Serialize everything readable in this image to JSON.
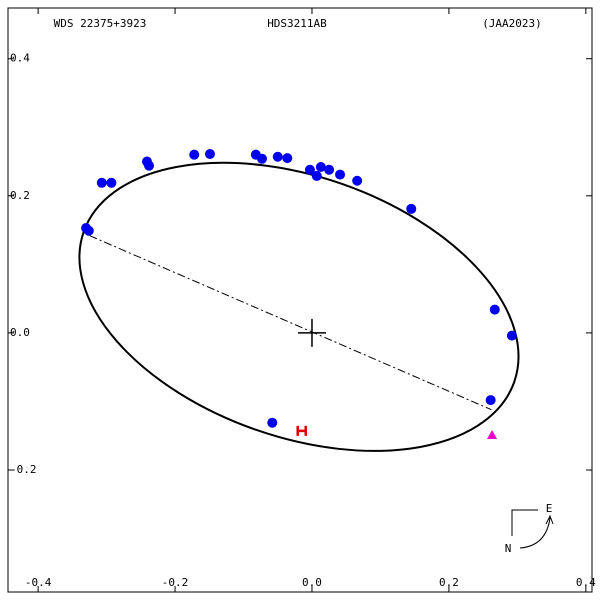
{
  "chart_data": {
    "type": "scatter",
    "header": {
      "left": "WDS 22375+3923",
      "center": "HDS3211AB",
      "right": "(JAA2023)"
    },
    "xlim": [
      -0.444,
      0.409
    ],
    "ylim": [
      -0.378,
      0.474
    ],
    "xticks": [
      -0.4,
      -0.2,
      {
        "value": 0,
        "label": "0.0"
      },
      0.2,
      0.4
    ],
    "yticks": [
      -0.2,
      {
        "value": 0,
        "label": "0.0"
      },
      0.2,
      0.4
    ],
    "series": [
      {
        "color": "#0000ee",
        "marker": "circle",
        "x": [
          -0.33,
          -0.326,
          -0.307,
          -0.293,
          -0.241,
          -0.238,
          -0.172,
          -0.149,
          -0.082,
          -0.073,
          -0.05,
          -0.036,
          -0.003,
          0.007,
          0.013,
          0.025,
          0.041,
          0.066,
          0.145,
          0.267,
          0.292,
          0.261,
          -0.058
        ],
        "values": [
          0.153,
          0.149,
          0.219,
          0.219,
          0.25,
          0.244,
          0.26,
          0.261,
          0.26,
          0.254,
          0.257,
          0.255,
          0.238,
          0.229,
          0.242,
          0.238,
          0.231,
          0.222,
          0.181,
          0.034,
          -0.004,
          -0.098,
          -0.131
        ]
      },
      {
        "color": "#dd0000",
        "marker": "H",
        "x": [
          -0.015
        ],
        "values": [
          -0.143
        ]
      },
      {
        "color": "#ee00cc",
        "marker": "triangle",
        "x": [
          0.263
        ],
        "values": [
          -0.149
        ]
      }
    ],
    "orbit": {
      "center": [
        -0.019,
        0.038
      ],
      "semi_axes": [
        0.333,
        0.19
      ],
      "angle": -19.2,
      "color": "#000000"
    },
    "apsides": {
      "x": [
        -0.325,
        0.262
      ],
      "values": [
        0.142,
        -0.112
      ]
    },
    "primary": [
      0,
      0
    ],
    "compass": {
      "east": "E",
      "north": "N"
    }
  }
}
